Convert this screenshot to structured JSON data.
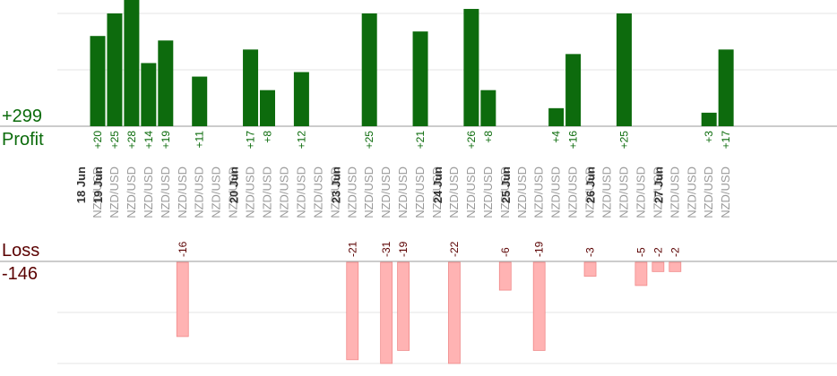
{
  "summary": {
    "profit_total": "+299",
    "profit_label": "Profit",
    "loss_label": "Loss",
    "loss_total": "-146"
  },
  "colors": {
    "profit_bar": "#0d6b0d",
    "profit_text": "#0b6b0b",
    "loss_bar": "#ffb3b3",
    "loss_text": "#5a0000",
    "pair_text": "#9a9a9a",
    "date_text": "#333333",
    "grid": "#e6e6e6",
    "axis": "#9a9a9a"
  },
  "chart_data": {
    "type": "bar",
    "title": "",
    "xlabel": "",
    "ylabel": "",
    "profit_ylim": [
      0,
      25
    ],
    "loss_ylim": [
      -22,
      0
    ],
    "grid": true,
    "date_markers": [
      {
        "date": "18 Jun",
        "before_index": 0
      },
      {
        "date": "19 Jun",
        "before_index": 1
      },
      {
        "date": "20 Jun",
        "before_index": 9
      },
      {
        "date": "23 Jun",
        "before_index": 15
      },
      {
        "date": "24 Jun",
        "before_index": 21
      },
      {
        "date": "25 Jun",
        "before_index": 25
      },
      {
        "date": "26 Jun",
        "before_index": 30
      },
      {
        "date": "27 Jun",
        "before_index": 34
      }
    ],
    "trades": [
      {
        "pair": "NZD/USD",
        "value": 20,
        "label": "+20"
      },
      {
        "pair": "NZD/USD",
        "value": 25,
        "label": "+25"
      },
      {
        "pair": "NZD/USD",
        "value": 28,
        "label": "+28"
      },
      {
        "pair": "NZD/USD",
        "value": 14,
        "label": "+14"
      },
      {
        "pair": "NZD/USD",
        "value": 19,
        "label": "+19"
      },
      {
        "pair": "NZD/USD",
        "value": -16,
        "label": "-16"
      },
      {
        "pair": "NZD/USD",
        "value": 11,
        "label": "+11"
      },
      {
        "pair": "NZD/USD",
        "value": null,
        "label": ""
      },
      {
        "pair": "NZD/USD",
        "value": null,
        "label": ""
      },
      {
        "pair": "NZD/USD",
        "value": 17,
        "label": "+17"
      },
      {
        "pair": "NZD/USD",
        "value": 8,
        "label": "+8"
      },
      {
        "pair": "NZD/USD",
        "value": null,
        "label": ""
      },
      {
        "pair": "NZD/USD",
        "value": 12,
        "label": "+12"
      },
      {
        "pair": "NZD/USD",
        "value": null,
        "label": ""
      },
      {
        "pair": "NZD/USD",
        "value": null,
        "label": ""
      },
      {
        "pair": "NZD/USD",
        "value": -21,
        "label": "-21"
      },
      {
        "pair": "NZD/USD",
        "value": 25,
        "label": "+25"
      },
      {
        "pair": "NZD/USD",
        "value": -31,
        "label": "-31"
      },
      {
        "pair": "NZD/USD",
        "value": -19,
        "label": "-19"
      },
      {
        "pair": "NZD/USD",
        "value": 21,
        "label": "+21"
      },
      {
        "pair": "NZD/USD",
        "value": null,
        "label": ""
      },
      {
        "pair": "NZD/USD",
        "value": -22,
        "label": "-22"
      },
      {
        "pair": "NZD/USD",
        "value": 26,
        "label": "+26"
      },
      {
        "pair": "NZD/USD",
        "value": 8,
        "label": "+8"
      },
      {
        "pair": "NZD/USD",
        "value": -6,
        "label": "-6"
      },
      {
        "pair": "NZD/USD",
        "value": null,
        "label": ""
      },
      {
        "pair": "NZD/USD",
        "value": -19,
        "label": "-19"
      },
      {
        "pair": "NZD/USD",
        "value": 4,
        "label": "+4"
      },
      {
        "pair": "NZD/USD",
        "value": 16,
        "label": "+16"
      },
      {
        "pair": "NZD/USD",
        "value": -3,
        "label": "-3"
      },
      {
        "pair": "NZD/USD",
        "value": null,
        "label": ""
      },
      {
        "pair": "NZD/USD",
        "value": 25,
        "label": "+25"
      },
      {
        "pair": "NZD/USD",
        "value": -5,
        "label": "-5"
      },
      {
        "pair": "NZD/USD",
        "value": -2,
        "label": "-2"
      },
      {
        "pair": "NZD/USD",
        "value": -2,
        "label": "-2"
      },
      {
        "pair": "NZD/USD",
        "value": null,
        "label": ""
      },
      {
        "pair": "NZD/USD",
        "value": 3,
        "label": "+3"
      },
      {
        "pair": "NZD/USD",
        "value": 17,
        "label": "+17"
      }
    ]
  }
}
